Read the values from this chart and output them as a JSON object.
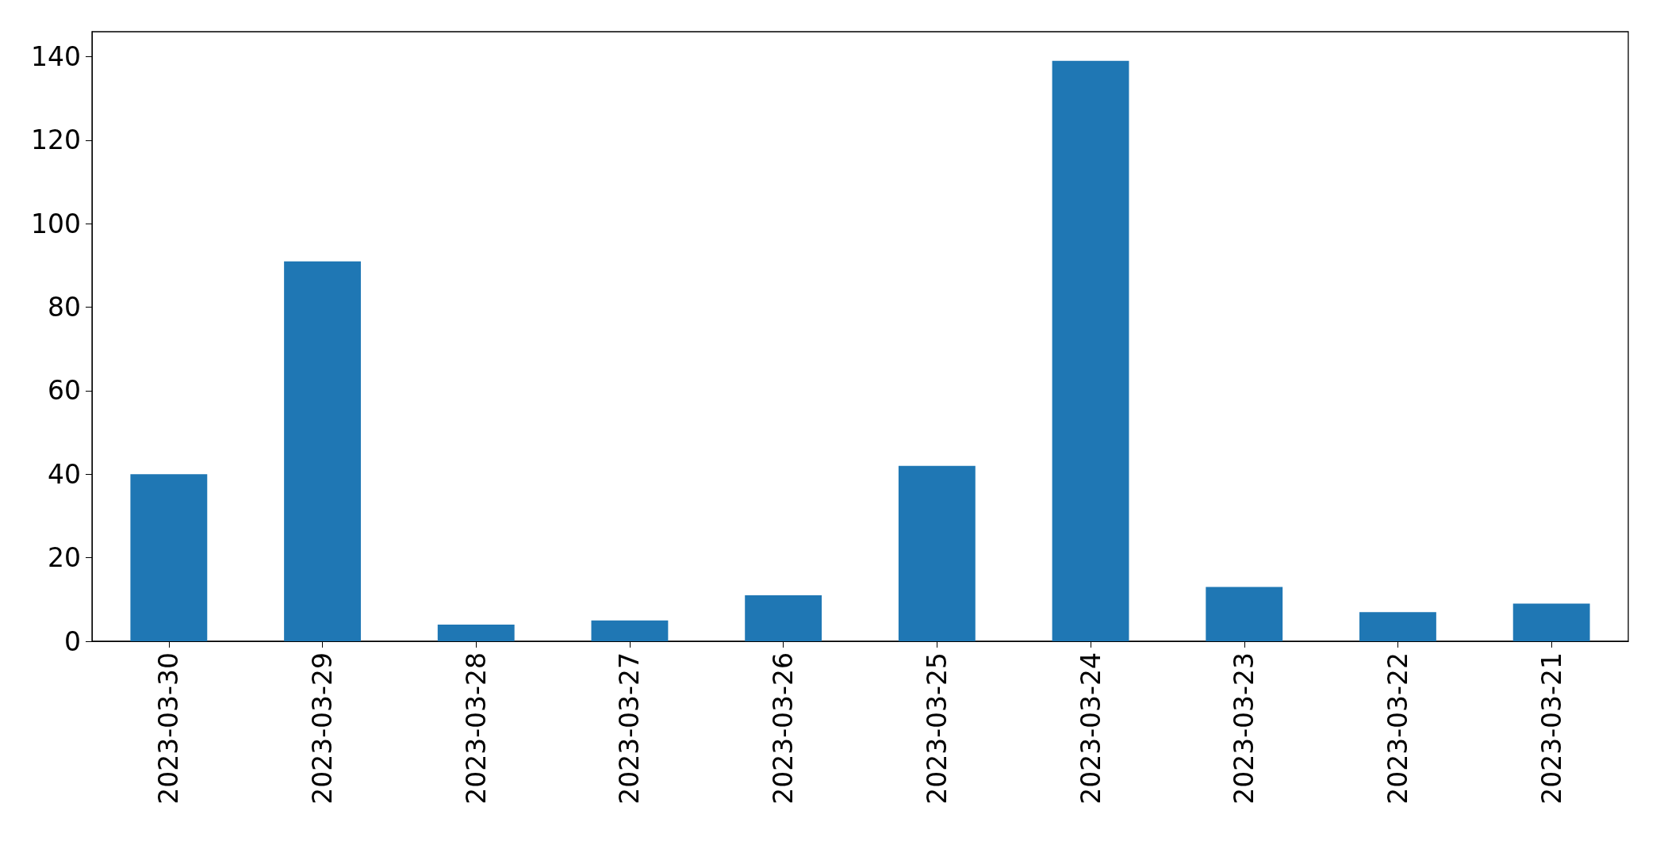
{
  "chart_data": {
    "type": "bar",
    "categories": [
      "2023-03-30",
      "2023-03-29",
      "2023-03-28",
      "2023-03-27",
      "2023-03-26",
      "2023-03-25",
      "2023-03-24",
      "2023-03-23",
      "2023-03-22",
      "2023-03-21"
    ],
    "values": [
      40,
      91,
      4,
      5,
      11,
      42,
      139,
      13,
      7,
      9
    ],
    "color": "#1f77b4",
    "ylim": [
      0,
      146
    ],
    "yticks": [
      0,
      20,
      40,
      60,
      80,
      100,
      120,
      140
    ],
    "grid": false
  }
}
